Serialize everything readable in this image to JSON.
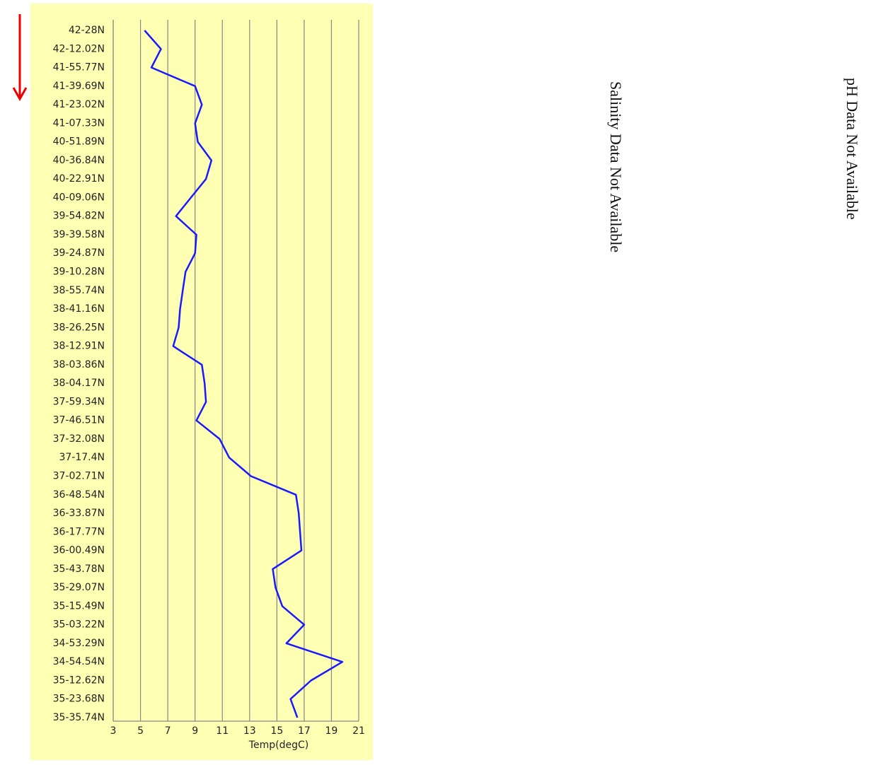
{
  "chart_data": {
    "type": "line",
    "orientation": "vertical",
    "x_label": "Temp(degC)",
    "categories": [
      "42-28N",
      "42-12.02N",
      "41-55.77N",
      "41-39.69N",
      "41-23.02N",
      "41-07.33N",
      "40-51.89N",
      "40-36.84N",
      "40-22.91N",
      "40-09.06N",
      "39-54.82N",
      "39-39.58N",
      "39-24.87N",
      "39-10.28N",
      "38-55.74N",
      "38-41.16N",
      "38-26.25N",
      "38-12.91N",
      "38-03.86N",
      "38-04.17N",
      "37-59.34N",
      "37-46.51N",
      "37-32.08N",
      "37-17.4N",
      "37-02.71N",
      "36-48.54N",
      "36-33.87N",
      "36-17.77N",
      "36-00.49N",
      "35-43.78N",
      "35-29.07N",
      "35-15.49N",
      "35-03.22N",
      "34-53.29N",
      "34-54.54N",
      "35-12.62N",
      "35-23.68N",
      "35-35.74N"
    ],
    "values": [
      5.3,
      6.5,
      5.8,
      9.0,
      9.5,
      9.0,
      9.2,
      10.2,
      9.8,
      8.7,
      7.6,
      9.1,
      9.0,
      8.3,
      8.1,
      7.9,
      7.8,
      7.4,
      9.5,
      9.7,
      9.8,
      9.1,
      10.8,
      11.5,
      13.1,
      16.4,
      16.6,
      16.7,
      16.8,
      14.7,
      14.9,
      15.4,
      17.0,
      15.7,
      19.8,
      17.5,
      16.0,
      16.5
    ],
    "color": "#1a1aff",
    "xlim": [
      3,
      21
    ],
    "xticks": [
      3,
      5,
      7,
      9,
      11,
      13,
      15,
      17,
      19,
      21
    ],
    "grid": true,
    "annotations": [
      "Salinity Data Not Available",
      "pH Data Not Available"
    ]
  }
}
